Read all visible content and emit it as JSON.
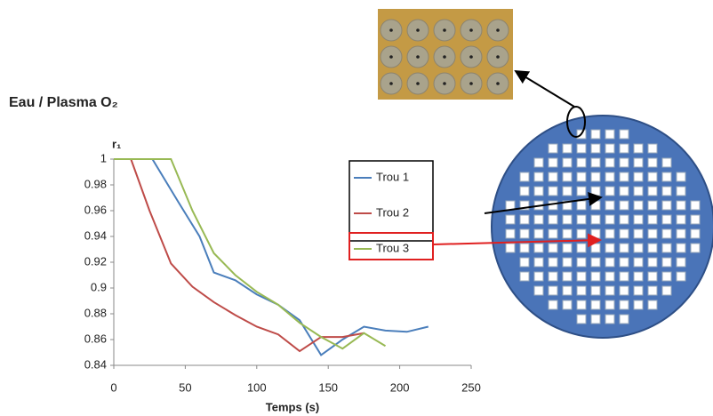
{
  "chart_data": {
    "type": "line",
    "title": "Eau / Plasma O₂",
    "ylabel": "r₁",
    "xlabel": "Temps (s)",
    "xlim": [
      0,
      250
    ],
    "xticks": [
      0,
      50,
      100,
      150,
      200,
      250
    ],
    "ylim": [
      0.84,
      1
    ],
    "yticks": [
      0.84,
      0.86,
      0.88,
      0.9,
      0.92,
      0.94,
      0.96,
      0.98,
      1
    ],
    "series": [
      {
        "name": "Trou 1",
        "color": "#4a7ebb",
        "x": [
          0,
          27,
          45,
          60,
          70,
          85,
          100,
          115,
          130,
          145,
          160,
          175,
          190,
          205,
          220
        ],
        "values": [
          1,
          1,
          0.967,
          0.94,
          0.912,
          0.906,
          0.895,
          0.887,
          0.875,
          0.848,
          0.86,
          0.87,
          0.867,
          0.866,
          0.87
        ]
      },
      {
        "name": "Trou 2",
        "color": "#be4b48",
        "x": [
          0,
          12,
          25,
          40,
          55,
          70,
          85,
          100,
          115,
          130,
          145,
          160,
          175
        ],
        "values": [
          1,
          1,
          0.96,
          0.919,
          0.901,
          0.889,
          0.879,
          0.87,
          0.864,
          0.851,
          0.862,
          0.862,
          0.865
        ]
      },
      {
        "name": "Trou 3",
        "color": "#98b954",
        "x": [
          0,
          40,
          55,
          70,
          85,
          100,
          115,
          130,
          145,
          160,
          175,
          190
        ],
        "values": [
          1,
          1,
          0.96,
          0.927,
          0.91,
          0.897,
          0.887,
          0.873,
          0.862,
          0.853,
          0.865,
          0.855
        ]
      }
    ]
  }
}
